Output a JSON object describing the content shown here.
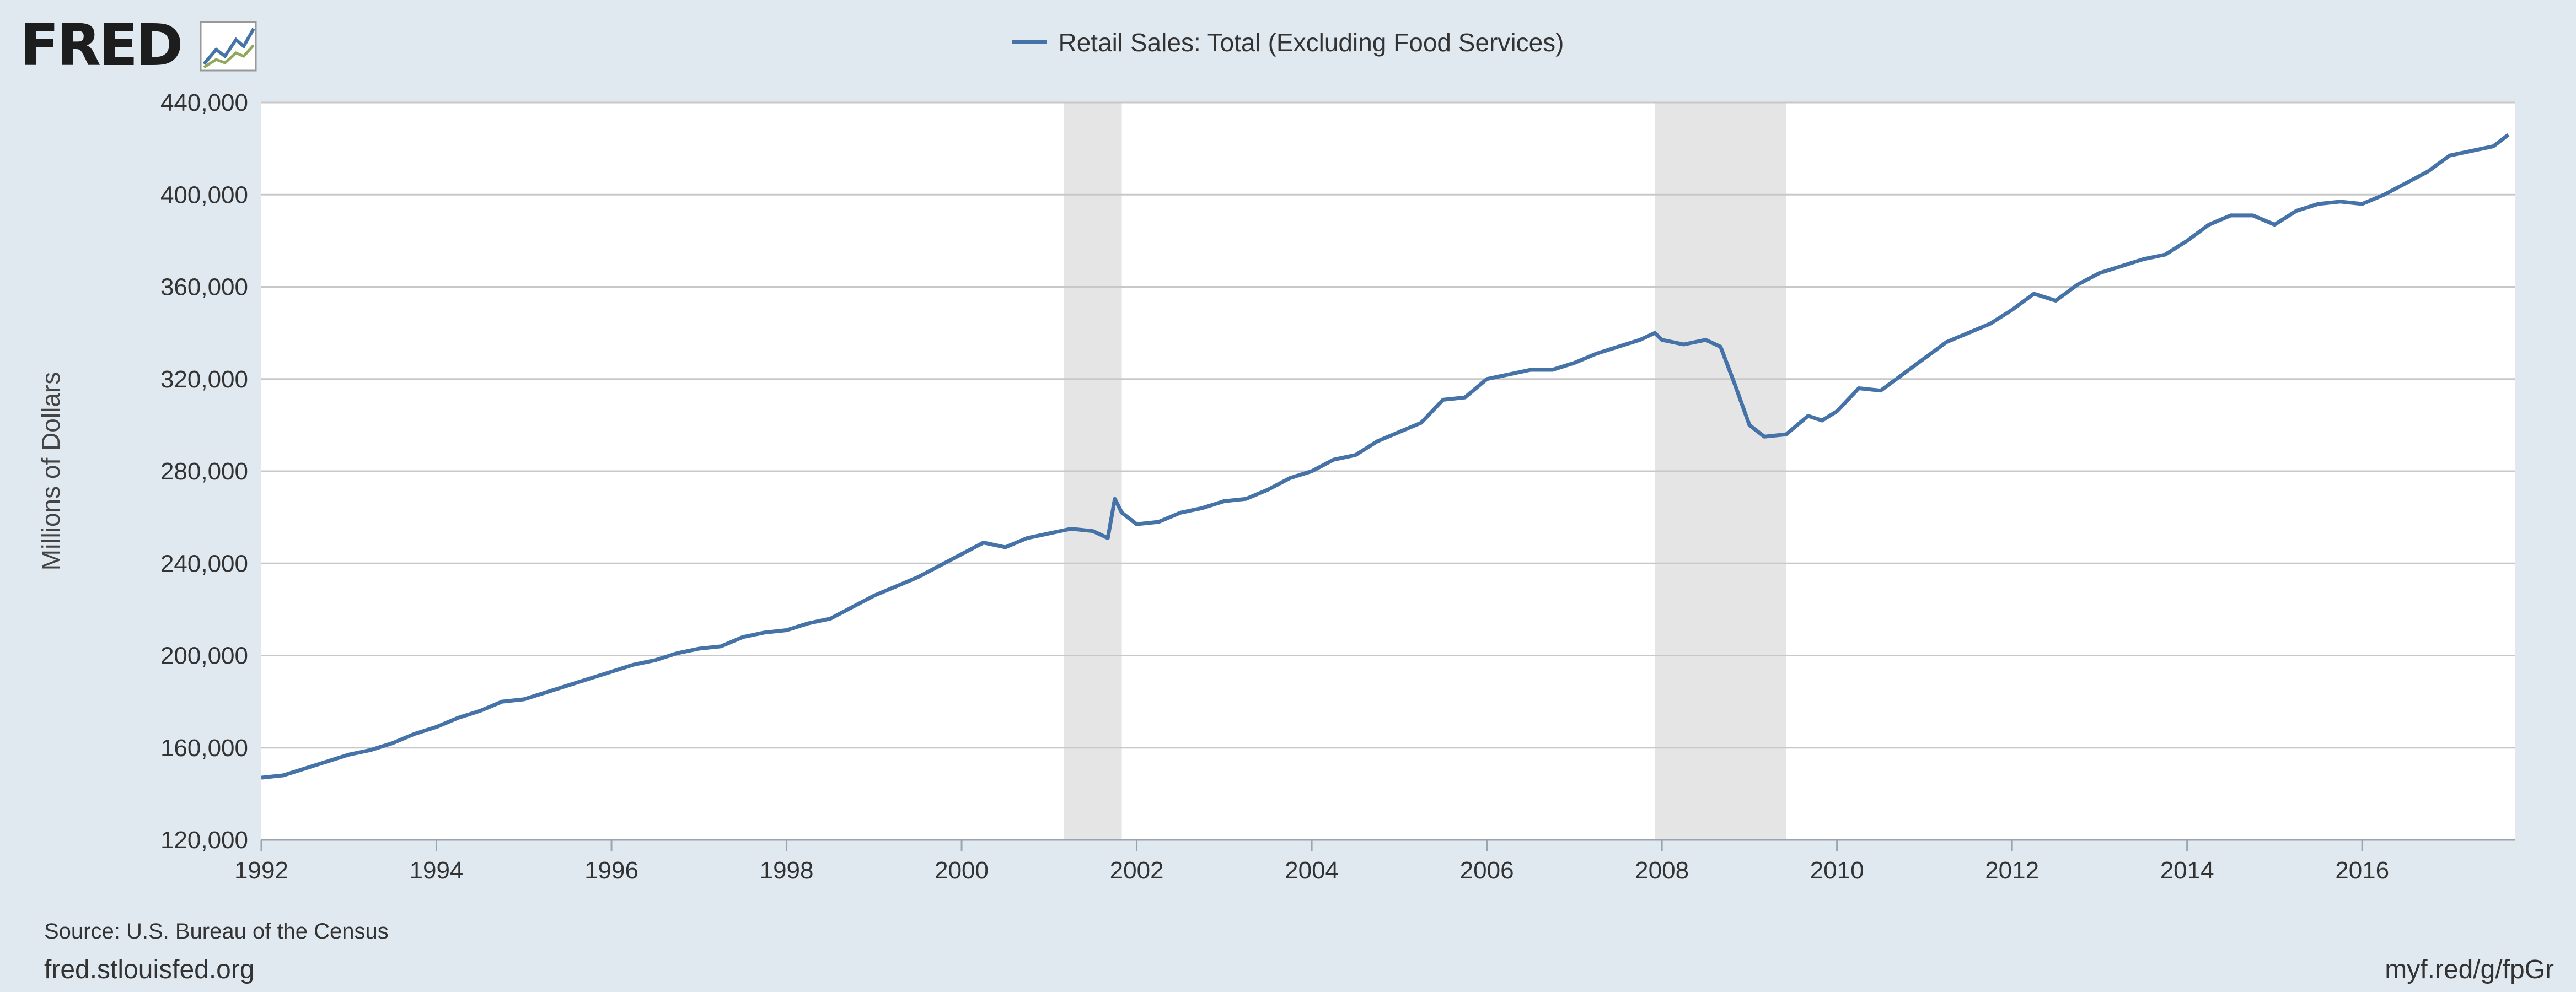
{
  "logo": {
    "text": "FRED",
    "registered": "®"
  },
  "chart_data": {
    "type": "line",
    "title": "",
    "legend": "Retail Sales: Total (Excluding Food Services)",
    "legend_position": "top-center",
    "ylabel": "Millions of Dollars",
    "xlabel": "",
    "ylim": [
      120000,
      440000
    ],
    "xlim": [
      1992.0,
      2017.75
    ],
    "grid": true,
    "yticks": [
      120000,
      160000,
      200000,
      240000,
      280000,
      320000,
      360000,
      400000,
      440000
    ],
    "ytick_labels": [
      "120,000",
      "160,000",
      "200,000",
      "240,000",
      "280,000",
      "320,000",
      "360,000",
      "400,000",
      "440,000"
    ],
    "xticks": [
      1992,
      1994,
      1996,
      1998,
      2000,
      2002,
      2004,
      2006,
      2008,
      2010,
      2012,
      2014,
      2016
    ],
    "xtick_labels": [
      "1992",
      "1994",
      "1996",
      "1998",
      "2000",
      "2002",
      "2004",
      "2006",
      "2008",
      "2010",
      "2012",
      "2014",
      "2016"
    ],
    "recessions": [
      [
        2001.17,
        2001.83
      ],
      [
        2007.92,
        2009.42
      ]
    ],
    "series": [
      {
        "name": "Retail Sales: Total (Excluding Food Services)",
        "color": "#4572a7",
        "points": [
          [
            1992.0,
            147000
          ],
          [
            1992.25,
            148000
          ],
          [
            1992.5,
            151000
          ],
          [
            1992.75,
            154000
          ],
          [
            1993.0,
            157000
          ],
          [
            1993.25,
            159000
          ],
          [
            1993.5,
            162000
          ],
          [
            1993.75,
            166000
          ],
          [
            1994.0,
            169000
          ],
          [
            1994.25,
            173000
          ],
          [
            1994.5,
            176000
          ],
          [
            1994.75,
            180000
          ],
          [
            1995.0,
            181000
          ],
          [
            1995.25,
            184000
          ],
          [
            1995.5,
            187000
          ],
          [
            1995.75,
            190000
          ],
          [
            1996.0,
            193000
          ],
          [
            1996.25,
            196000
          ],
          [
            1996.5,
            198000
          ],
          [
            1996.75,
            201000
          ],
          [
            1997.0,
            203000
          ],
          [
            1997.25,
            204000
          ],
          [
            1997.5,
            208000
          ],
          [
            1997.75,
            210000
          ],
          [
            1998.0,
            211000
          ],
          [
            1998.25,
            214000
          ],
          [
            1998.5,
            216000
          ],
          [
            1998.75,
            221000
          ],
          [
            1999.0,
            226000
          ],
          [
            1999.25,
            230000
          ],
          [
            1999.5,
            234000
          ],
          [
            1999.75,
            239000
          ],
          [
            2000.0,
            244000
          ],
          [
            2000.25,
            249000
          ],
          [
            2000.5,
            247000
          ],
          [
            2000.75,
            251000
          ],
          [
            2001.0,
            253000
          ],
          [
            2001.25,
            255000
          ],
          [
            2001.5,
            254000
          ],
          [
            2001.67,
            251000
          ],
          [
            2001.75,
            268000
          ],
          [
            2001.83,
            262000
          ],
          [
            2002.0,
            257000
          ],
          [
            2002.25,
            258000
          ],
          [
            2002.5,
            262000
          ],
          [
            2002.75,
            264000
          ],
          [
            2003.0,
            267000
          ],
          [
            2003.25,
            268000
          ],
          [
            2003.5,
            272000
          ],
          [
            2003.75,
            277000
          ],
          [
            2004.0,
            280000
          ],
          [
            2004.25,
            285000
          ],
          [
            2004.5,
            287000
          ],
          [
            2004.75,
            293000
          ],
          [
            2005.0,
            297000
          ],
          [
            2005.25,
            301000
          ],
          [
            2005.5,
            311000
          ],
          [
            2005.75,
            312000
          ],
          [
            2006.0,
            320000
          ],
          [
            2006.25,
            322000
          ],
          [
            2006.5,
            324000
          ],
          [
            2006.75,
            324000
          ],
          [
            2007.0,
            327000
          ],
          [
            2007.25,
            331000
          ],
          [
            2007.5,
            334000
          ],
          [
            2007.75,
            337000
          ],
          [
            2007.92,
            340000
          ],
          [
            2008.0,
            337000
          ],
          [
            2008.25,
            335000
          ],
          [
            2008.5,
            337000
          ],
          [
            2008.67,
            334000
          ],
          [
            2008.83,
            318000
          ],
          [
            2009.0,
            300000
          ],
          [
            2009.17,
            295000
          ],
          [
            2009.42,
            296000
          ],
          [
            2009.67,
            304000
          ],
          [
            2009.83,
            302000
          ],
          [
            2010.0,
            306000
          ],
          [
            2010.25,
            316000
          ],
          [
            2010.5,
            315000
          ],
          [
            2010.75,
            322000
          ],
          [
            2011.0,
            329000
          ],
          [
            2011.25,
            336000
          ],
          [
            2011.5,
            340000
          ],
          [
            2011.75,
            344000
          ],
          [
            2012.0,
            350000
          ],
          [
            2012.25,
            357000
          ],
          [
            2012.5,
            354000
          ],
          [
            2012.75,
            361000
          ],
          [
            2013.0,
            366000
          ],
          [
            2013.25,
            369000
          ],
          [
            2013.5,
            372000
          ],
          [
            2013.75,
            374000
          ],
          [
            2014.0,
            380000
          ],
          [
            2014.25,
            387000
          ],
          [
            2014.5,
            391000
          ],
          [
            2014.75,
            391000
          ],
          [
            2015.0,
            387000
          ],
          [
            2015.25,
            393000
          ],
          [
            2015.5,
            396000
          ],
          [
            2015.75,
            397000
          ],
          [
            2016.0,
            396000
          ],
          [
            2016.25,
            400000
          ],
          [
            2016.5,
            405000
          ],
          [
            2016.75,
            410000
          ],
          [
            2017.0,
            417000
          ],
          [
            2017.25,
            419000
          ],
          [
            2017.5,
            421000
          ],
          [
            2017.67,
            426000
          ]
        ]
      }
    ]
  },
  "footer": {
    "source": "Source: U.S. Bureau of the Census",
    "site": "fred.stlouisfed.org",
    "shortlink": "myf.red/g/fpGr"
  }
}
